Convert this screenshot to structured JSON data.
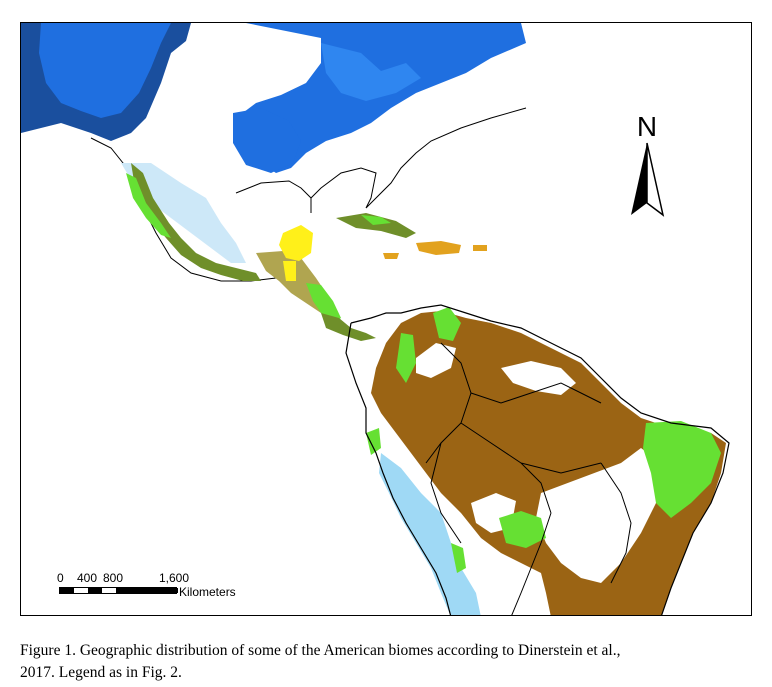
{
  "map": {
    "north_label": "N",
    "scale": {
      "ticks": [
        "0",
        "400",
        "800",
        "1,600"
      ],
      "unit": "Kilometers"
    },
    "colors": {
      "dark_blue": "#1a4f9e",
      "medium_blue": "#1f6fe0",
      "light_blue_lake": "#2f86f0",
      "pale_blue": "#cde8f8",
      "dry_forest_brown": "#9b6414",
      "tropical_green": "#66e033",
      "montane_olive": "#6f8f2a",
      "khaki": "#b0a550",
      "yellow": "#fff01a",
      "caribbean_orange": "#e2a21e",
      "andes_light_blue": "#9fd9f5",
      "outline": "#000000"
    }
  },
  "caption": {
    "line1": "Figure 1. Geographic distribution of some of the American biomes according to Dinerstein et al.,",
    "line2": "2017. Legend as in Fig. 2."
  }
}
